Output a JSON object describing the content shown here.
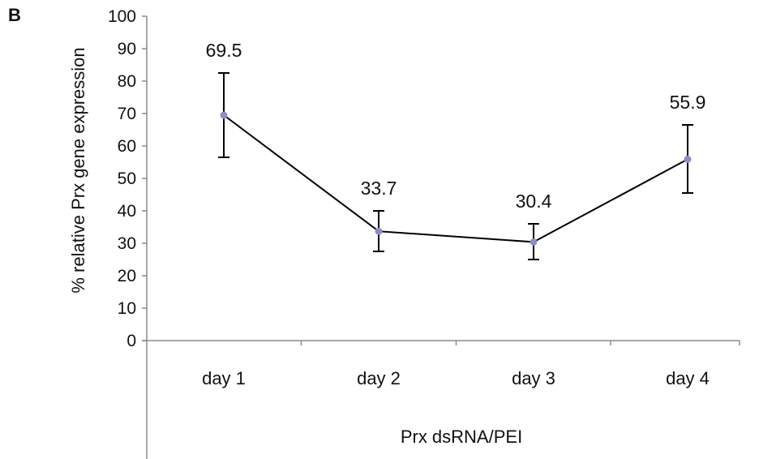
{
  "panel_letter": "B",
  "chart_data": {
    "type": "line",
    "categories": [
      "day 1",
      "day 2",
      "day 3",
      "day 4"
    ],
    "series": [
      {
        "values": [
          69.5,
          33.7,
          30.4,
          55.9
        ],
        "error_upper": [
          82.5,
          40.0,
          36.0,
          66.5
        ],
        "error_lower": [
          56.5,
          27.5,
          25.0,
          45.5
        ],
        "data_labels": [
          "69.5",
          "33.7",
          "30.4",
          "55.9"
        ],
        "line_color": "#000000",
        "marker_color": "#8c8fc4"
      }
    ],
    "ylim": [
      0,
      100
    ],
    "yticks": [
      0,
      10,
      20,
      30,
      40,
      50,
      60,
      70,
      80,
      90,
      100
    ],
    "ylabel": "% relative Prx gene expression",
    "xlabel": "Prx dsRNA/PEI",
    "grid": false,
    "legend": "none"
  }
}
